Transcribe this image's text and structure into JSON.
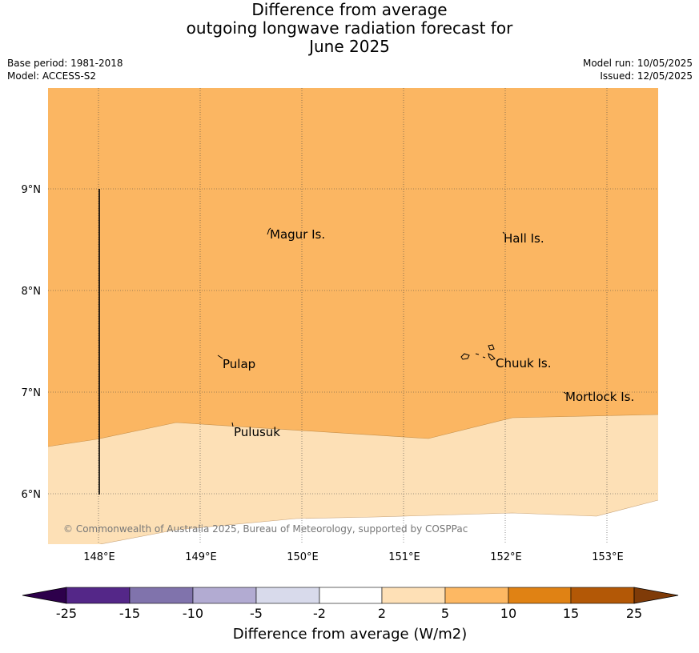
{
  "title": {
    "line1": "Difference from average",
    "line2": "outgoing longwave radiation forecast for",
    "line3": "June 2025"
  },
  "meta": {
    "base_period": "Base period: 1981-2018",
    "model": "Model: ACCESS-S2",
    "model_run": "Model run: 10/05/2025",
    "issued": "Issued: 12/05/2025"
  },
  "map": {
    "lon_labels": [
      "148°E",
      "149°E",
      "150°E",
      "151°E",
      "152°E",
      "153°E"
    ],
    "lat_labels": [
      "9°N",
      "8°N",
      "7°N",
      "6°N"
    ],
    "places": [
      "Magur Is.",
      "Hall Is.",
      "Pulap",
      "Chuuk Is.",
      "Mortlock Is.",
      "Pulusuk"
    ],
    "copyright": "© Commonwealth of Australia 2025, Bureau of Meteorology, supported by COSPPac",
    "colors": {
      "band_5_10": "#fbb662",
      "band_2_5": "#fde0b6",
      "band_minus2_2": "#ffffff"
    }
  },
  "colorbar": {
    "ticks": [
      "-25",
      "-15",
      "-10",
      "-5",
      "-2",
      "2",
      "5",
      "10",
      "15",
      "25"
    ],
    "colors": [
      "#2d004b",
      "#542788",
      "#8073ac",
      "#b2abd2",
      "#d8daeb",
      "#ffffff",
      "#fee0b6",
      "#fdb863",
      "#e08214",
      "#b35806",
      "#7f3b08"
    ],
    "label": "Difference from average (W/m2)"
  }
}
